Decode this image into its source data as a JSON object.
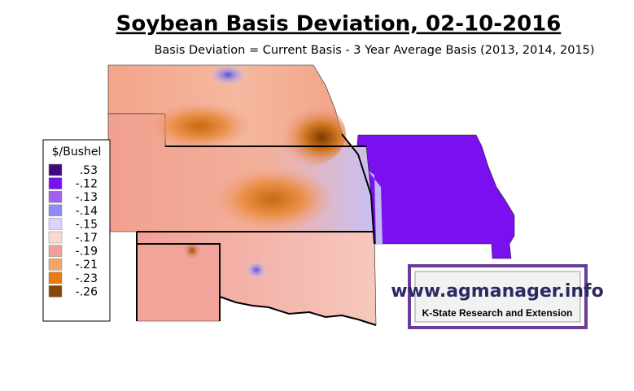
{
  "title": "Soybean Basis Deviation, 02-10-2016",
  "subtitle": "Basis Deviation = Current Basis - 3 Year Average Basis (2013, 2014, 2015)",
  "legend": {
    "title": "$/Bushel",
    "items": [
      {
        "label": ".53",
        "color": "#3d0a80"
      },
      {
        "label": "-.12",
        "color": "#7a10f0"
      },
      {
        "label": "-.13",
        "color": "#a060f0"
      },
      {
        "label": "-.14",
        "color": "#8c8cf8"
      },
      {
        "label": "-.15",
        "color": "#dcd4fa"
      },
      {
        "label": "-.17",
        "color": "#fadad0"
      },
      {
        "label": "-.19",
        "color": "#f0a098"
      },
      {
        "label": "-.21",
        "color": "#f5a468"
      },
      {
        "label": "-.23",
        "color": "#e87a14"
      },
      {
        "label": "-.26",
        "color": "#8a4606"
      }
    ]
  },
  "logo": {
    "url": "www.agmanager.info",
    "org": "K-State Research and Extension"
  }
}
